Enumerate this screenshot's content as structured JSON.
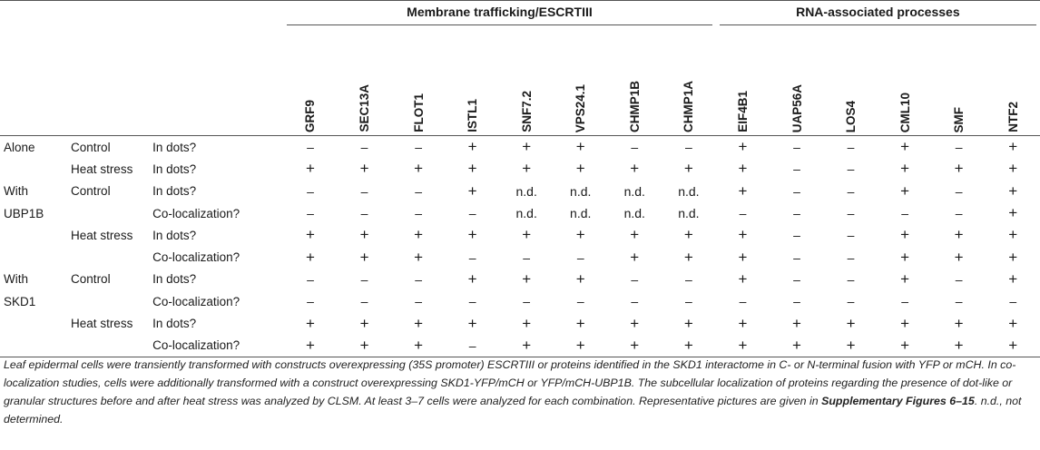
{
  "groups": [
    {
      "label": "Membrane trafficking/ESCRTIII",
      "span": 8
    },
    {
      "label": "RNA-associated processes",
      "span": 6
    }
  ],
  "genes": [
    "GRF9",
    "SEC13A",
    "FLOT1",
    "ISTL1",
    "SNF7.2",
    "VPS24.1",
    "CHMP1B",
    "CHMP1A",
    "EIF4B1",
    "UAP56A",
    "LOS4",
    "CML10",
    "SMF",
    "NTF2"
  ],
  "rows": [
    {
      "cond": "Alone",
      "stress": "Control",
      "q": "In dots?",
      "vals": [
        "–",
        "–",
        "–",
        "+",
        "+",
        "+",
        "–",
        "–",
        "+",
        "–",
        "–",
        "+",
        "–",
        "+"
      ]
    },
    {
      "cond": "",
      "stress": "Heat stress",
      "q": "In dots?",
      "vals": [
        "+",
        "+",
        "+",
        "+",
        "+",
        "+",
        "+",
        "+",
        "+",
        "–",
        "–",
        "+",
        "+",
        "+"
      ]
    },
    {
      "cond": "With",
      "stress": "Control",
      "q": "In dots?",
      "vals": [
        "–",
        "–",
        "–",
        "+",
        "n.d.",
        "n.d.",
        "n.d.",
        "n.d.",
        "+",
        "–",
        "–",
        "+",
        "–",
        "+"
      ]
    },
    {
      "cond": "UBP1B",
      "stress": "",
      "q": "Co-localization?",
      "vals": [
        "–",
        "–",
        "–",
        "–",
        "n.d.",
        "n.d.",
        "n.d.",
        "n.d.",
        "–",
        "–",
        "–",
        "–",
        "–",
        "+"
      ]
    },
    {
      "cond": "",
      "stress": "Heat stress",
      "q": "In dots?",
      "vals": [
        "+",
        "+",
        "+",
        "+",
        "+",
        "+",
        "+",
        "+",
        "+",
        "–",
        "–",
        "+",
        "+",
        "+"
      ]
    },
    {
      "cond": "",
      "stress": "",
      "q": "Co-localization?",
      "vals": [
        "+",
        "+",
        "+",
        "–",
        "–",
        "–",
        "+",
        "+",
        "+",
        "–",
        "–",
        "+",
        "+",
        "+"
      ]
    },
    {
      "cond": "With",
      "stress": "Control",
      "q": "In dots?",
      "vals": [
        "–",
        "–",
        "–",
        "+",
        "+",
        "+",
        "–",
        "–",
        "+",
        "–",
        "–",
        "+",
        "–",
        "+"
      ]
    },
    {
      "cond": "SKD1",
      "stress": "",
      "q": "Co-localization?",
      "vals": [
        "–",
        "–",
        "–",
        "–",
        "–",
        "–",
        "–",
        "–",
        "–",
        "–",
        "–",
        "–",
        "–",
        "–"
      ]
    },
    {
      "cond": "",
      "stress": "Heat stress",
      "q": "In dots?",
      "vals": [
        "+",
        "+",
        "+",
        "+",
        "+",
        "+",
        "+",
        "+",
        "+",
        "+",
        "+",
        "+",
        "+",
        "+"
      ]
    },
    {
      "cond": "",
      "stress": "",
      "q": "Co-localization?",
      "vals": [
        "+",
        "+",
        "+",
        "–",
        "+",
        "+",
        "+",
        "+",
        "+",
        "+",
        "+",
        "+",
        "+",
        "+"
      ]
    }
  ],
  "footnote": {
    "text_before": "Leaf epidermal cells were transiently transformed with constructs overexpressing (35S promoter) ESCRTIII or proteins identified in the SKD1 interactome in C- or N-terminal fusion with YFP or mCH. In co-localization studies, cells were additionally transformed with a construct overexpressing SKD1-YFP/mCH or YFP/mCH-UBP1B. The subcellular localization of proteins regarding the presence of dot-like or granular structures before and after heat stress was analyzed by CLSM. At least 3–7 cells were analyzed for each combination. Representative pictures are given in ",
    "bold": "Supplementary Figures 6–15",
    "text_after": ". n.d., not determined."
  }
}
